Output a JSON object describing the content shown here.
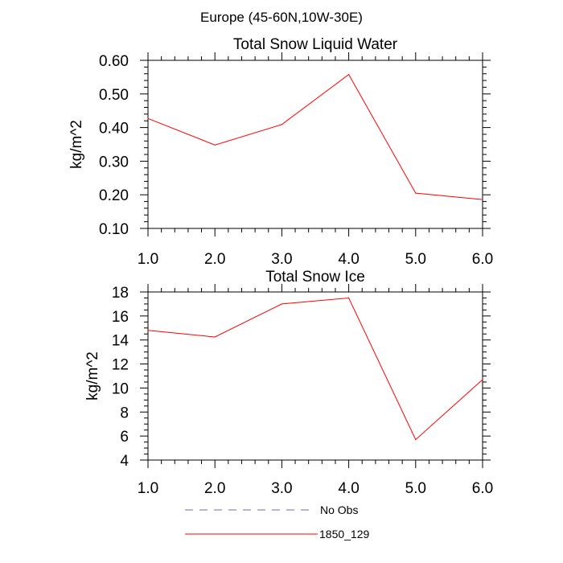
{
  "figure_title": "Europe (45-60N,10W-30E)",
  "chart_data": [
    {
      "type": "line",
      "title": "Total Snow Liquid Water",
      "xlabel": "",
      "ylabel": "kg/m^2",
      "xlim": [
        1.0,
        6.0
      ],
      "ylim": [
        0.1,
        0.6
      ],
      "xticks": [
        "1.0",
        "2.0",
        "3.0",
        "4.0",
        "5.0",
        "6.0"
      ],
      "yticks": [
        "0.10",
        "0.20",
        "0.30",
        "0.40",
        "0.50",
        "0.60"
      ],
      "x": [
        1,
        2,
        3,
        4,
        5,
        6
      ],
      "series": [
        {
          "name": "1850_129",
          "color": "#ff0000",
          "values": [
            0.427,
            0.348,
            0.409,
            0.558,
            0.205,
            0.186
          ]
        }
      ]
    },
    {
      "type": "line",
      "title": "Total Snow Ice",
      "xlabel": "",
      "ylabel": "kg/m^2",
      "xlim": [
        1.0,
        6.0
      ],
      "ylim": [
        4,
        18
      ],
      "xticks": [
        "1.0",
        "2.0",
        "3.0",
        "4.0",
        "5.0",
        "6.0"
      ],
      "yticks": [
        "4",
        "6",
        "8",
        "10",
        "12",
        "14",
        "16",
        "18"
      ],
      "x": [
        1,
        2,
        3,
        4,
        5,
        6
      ],
      "series": [
        {
          "name": "1850_129",
          "color": "#ff0000",
          "values": [
            14.8,
            14.25,
            17.0,
            17.5,
            5.7,
            10.7
          ]
        }
      ]
    }
  ],
  "legend": [
    {
      "label": "No Obs",
      "color": "#6a6ab8",
      "style": "dashed"
    },
    {
      "label": "1850_129",
      "color": "#ff0000",
      "style": "solid"
    }
  ]
}
